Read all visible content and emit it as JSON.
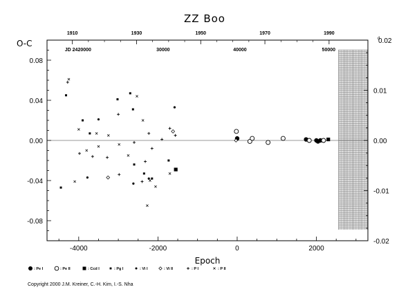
{
  "chart_data": {
    "type": "scatter",
    "title": "ZZ Boo",
    "xlabel": "Epoch",
    "ylabel": "O-C",
    "xlim": [
      -4800,
      3300
    ],
    "ylim": [
      -0.1,
      0.1
    ],
    "x_ticks": [
      -4000,
      -2000,
      0,
      2000
    ],
    "x_tick_labels": [
      "-4000",
      "-2000",
      "0",
      "2000"
    ],
    "y_ticks": [
      -0.08,
      -0.04,
      0.0,
      0.04,
      0.08
    ],
    "y_tick_labels": [
      "-0.08",
      "-0.04",
      "0.00",
      "0.04",
      "0.08"
    ],
    "top_axis": {
      "year_ticks": [
        1910,
        1930,
        1950,
        1970,
        1990
      ],
      "year_positions_epoch": [
        -4160,
        -2540,
        -920,
        700,
        2320
      ],
      "jd_label": "JD 2420000",
      "jd_label_epoch": -4350,
      "jd_ticks": [
        "30000",
        "40000",
        "50000"
      ],
      "jd_positions_epoch": [
        -1870,
        70,
        2310
      ]
    },
    "right_axis": {
      "ticks": [
        -0.02,
        -0.01,
        0.0,
        0.01,
        0.02
      ],
      "tick_labels": [
        "-0.02",
        "-0.01",
        "0.00",
        "0.01",
        "0.02"
      ],
      "top_label": "0.02",
      "top_label_mark": "d"
    },
    "shaded_region_epoch": [
      2560,
      3300
    ],
    "series": [
      {
        "name": "Pe I",
        "marker": "filled-circle",
        "x": [
          0,
          1740,
          2000,
          2040,
          2100
        ],
        "y": [
          0.002,
          0.001,
          0.0,
          -0.001,
          0.0
        ]
      },
      {
        "name": "Pe II",
        "marker": "open-circle",
        "x": [
          -20,
          320,
          380,
          780,
          1160,
          1820,
          2180
        ],
        "y": [
          0.009,
          -0.001,
          0.002,
          -0.002,
          0.002,
          0.0,
          0.0
        ]
      },
      {
        "name": "Ccd I",
        "marker": "filled-square",
        "x": [
          -1550,
          2300
        ],
        "y": [
          -0.029,
          0.001
        ]
      },
      {
        "name": "Pg I",
        "marker": "small-square",
        "x": [
          -4450,
          -4320,
          -3900,
          -3720,
          -3020,
          -2700,
          -2630,
          -2600,
          -2350,
          -2150,
          -1730
        ],
        "y": [
          -0.047,
          0.045,
          0.02,
          0.007,
          0.041,
          0.047,
          0.031,
          -0.024,
          -0.033,
          -0.038,
          -0.02
        ]
      },
      {
        "name": "Vi I",
        "marker": "dot",
        "x": [
          -3780,
          -3500,
          -2620,
          -2230,
          -1580
        ],
        "y": [
          -0.037,
          0.021,
          -0.043,
          -0.038,
          0.033
        ]
      },
      {
        "name": "Vi II",
        "marker": "open-diamond",
        "x": [
          -3260,
          -1620,
          -30
        ],
        "y": [
          -0.037,
          0.009,
          0.0
        ]
      },
      {
        "name": "Pi",
        "marker": "plus",
        "x": [
          -4280,
          -3980,
          -3650,
          -3280,
          -3000,
          -2980,
          -2600,
          -2400,
          -2320,
          -2230,
          -2150,
          -1900,
          -1700,
          -1560
        ],
        "y": [
          0.058,
          -0.013,
          -0.016,
          -0.017,
          0.026,
          -0.034,
          -0.002,
          -0.041,
          -0.021,
          0.007,
          -0.008,
          0.001,
          0.012,
          0.005
        ]
      },
      {
        "name": "Pii",
        "marker": "cross",
        "x": [
          -4250,
          -4100,
          -4000,
          -3800,
          -3550,
          -3500,
          -3250,
          -2980,
          -2750,
          -2530,
          -2380,
          -2270,
          -2200,
          -2060,
          -1700
        ],
        "y": [
          0.061,
          -0.041,
          0.011,
          -0.01,
          0.007,
          -0.006,
          0.005,
          -0.004,
          -0.015,
          0.044,
          0.02,
          -0.065,
          -0.04,
          -0.046,
          -0.033
        ]
      }
    ],
    "legend": {
      "placement": "bottom-left",
      "labels": [
        ": Pe I",
        ": Pe II",
        ": Ccd I",
        ": Pg I",
        ": Vi I",
        ": Vi II",
        ": P I",
        ": P II"
      ]
    },
    "grid": false
  },
  "copyright": "Copyright 2000 J.M. Kreiner, C.-H. Kim, I.-S. Nha"
}
